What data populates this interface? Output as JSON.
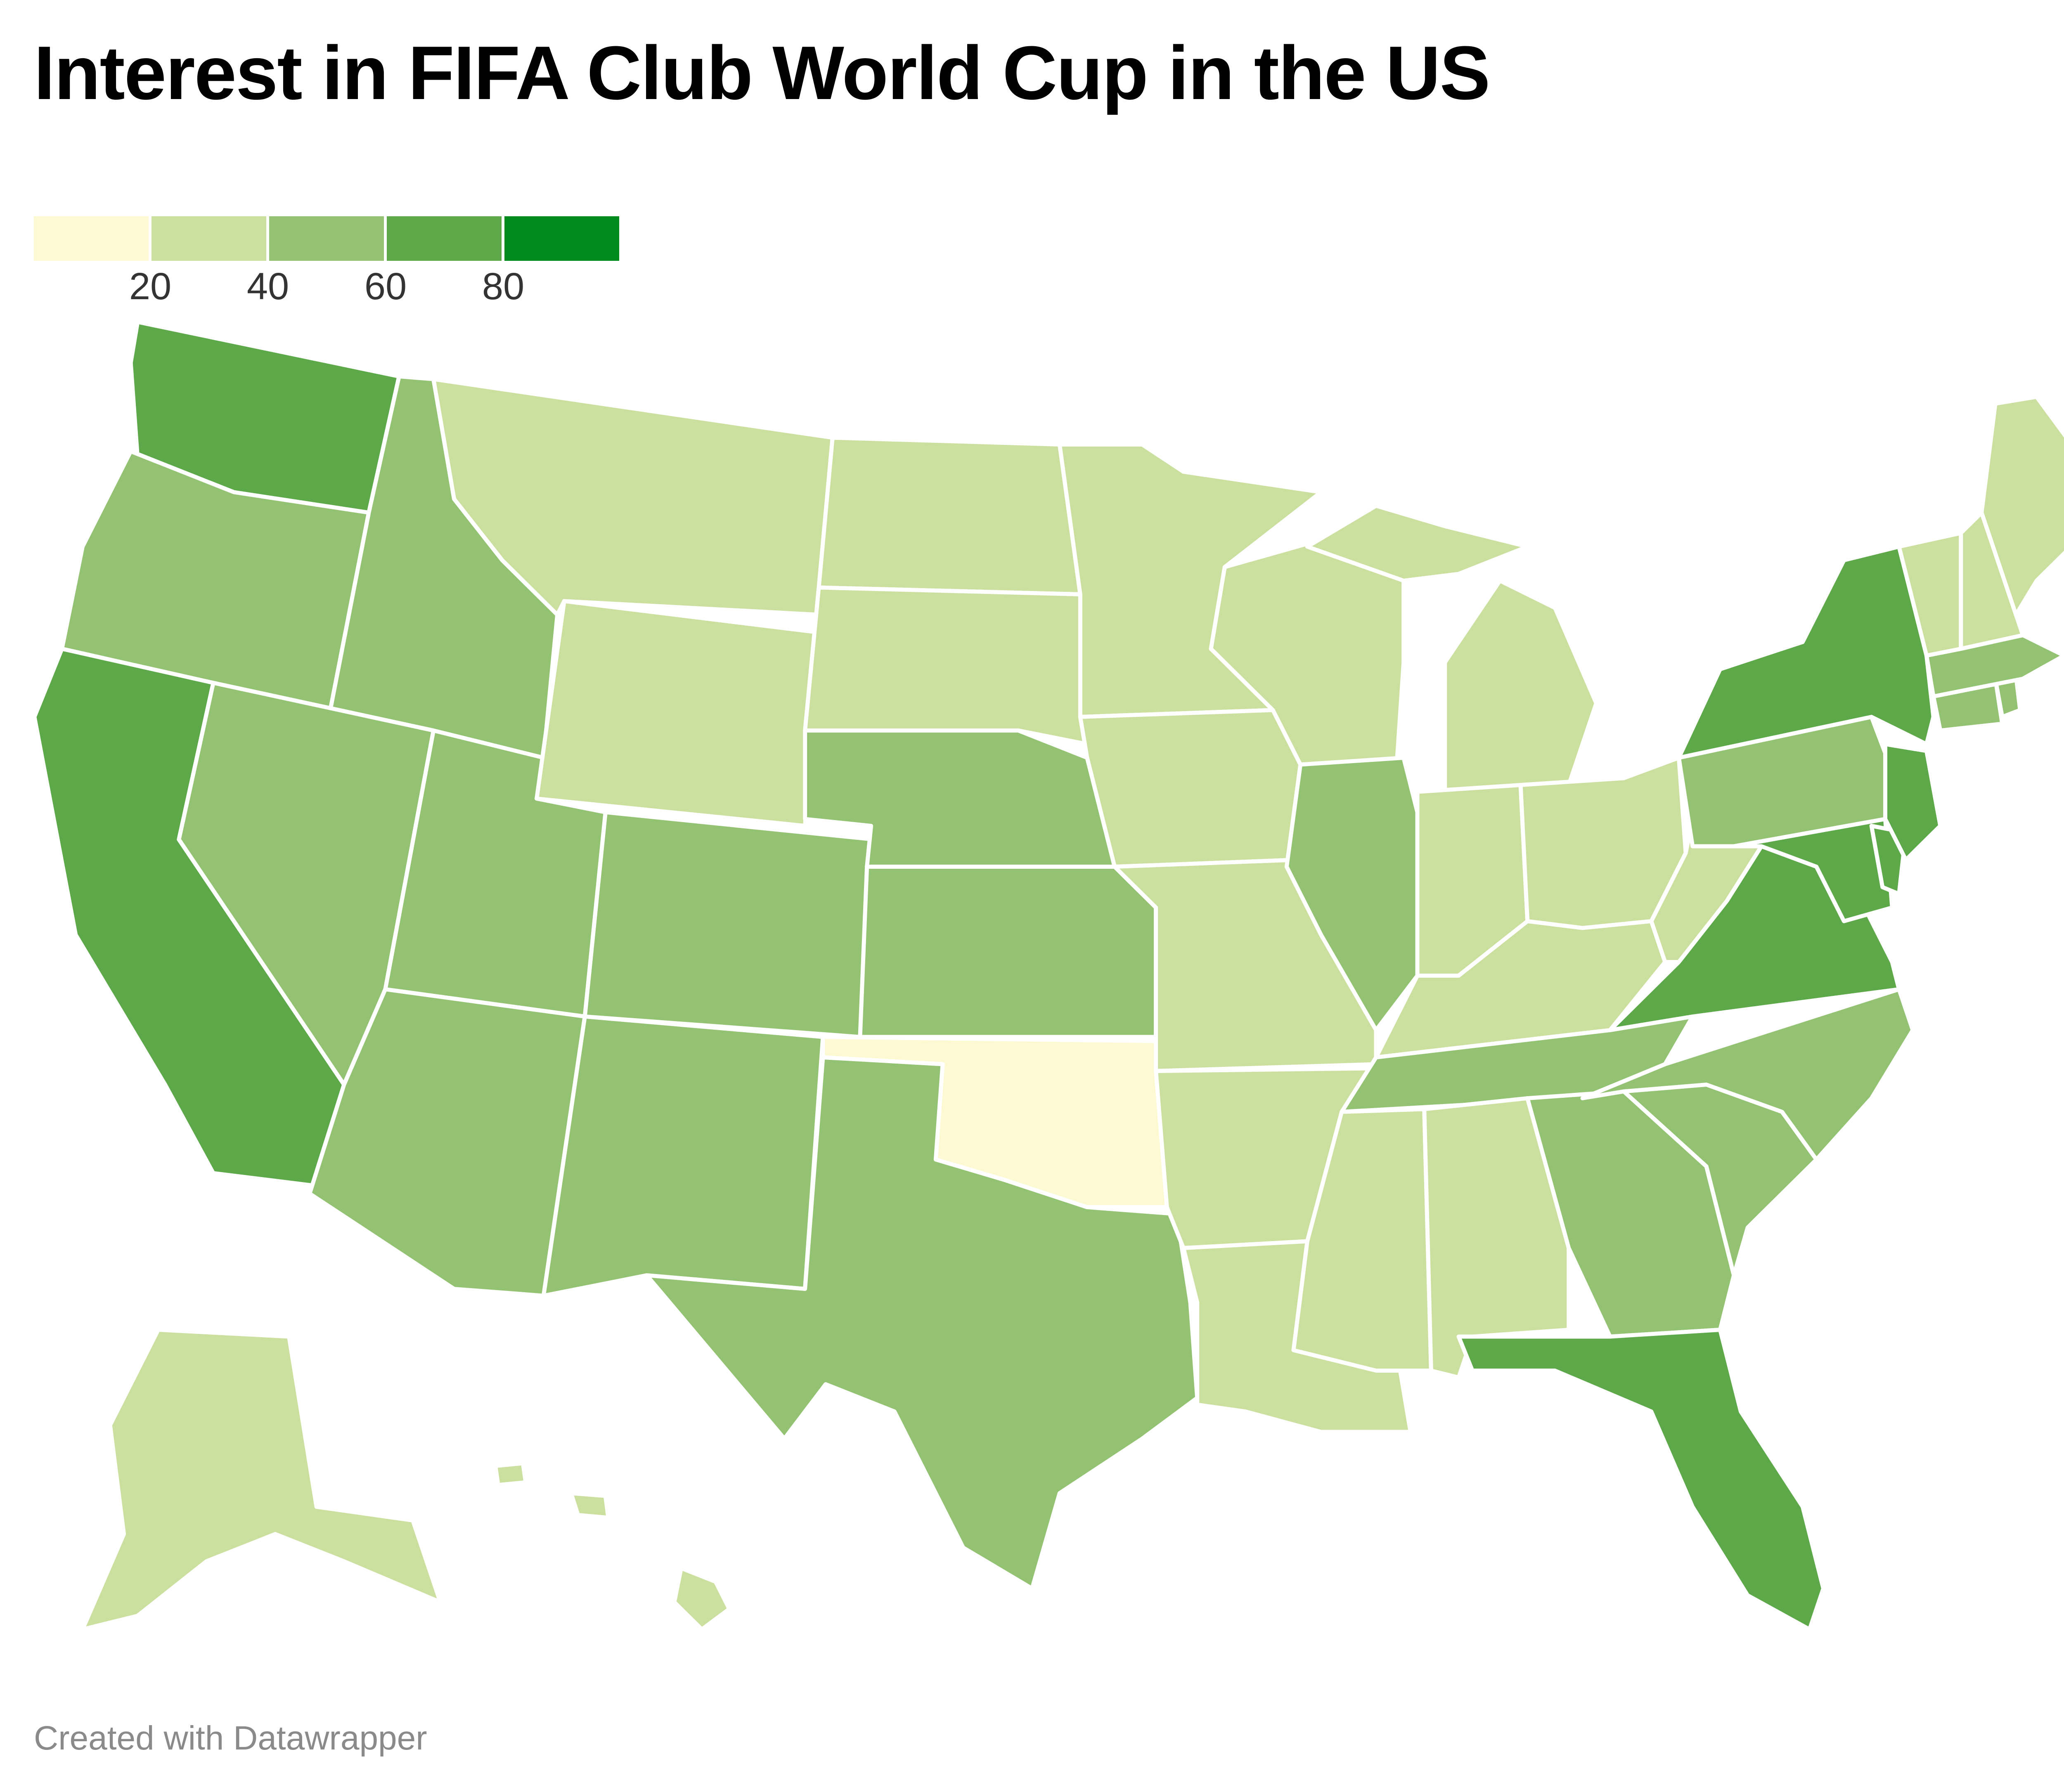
{
  "title": "Interest in FIFA Club World Cup in the US",
  "credit": "Created with Datawrapper",
  "legend": {
    "colors": [
      "#fdf9d2",
      "#cbdf9e",
      "#93c272",
      "#5da848",
      "#008a1e"
    ],
    "ticks": [
      "20",
      "40",
      "60",
      "80"
    ]
  },
  "map_data": {
    "type": "choropleth",
    "region": "United States",
    "bins": [
      [
        0,
        20
      ],
      [
        20,
        40
      ],
      [
        40,
        60
      ],
      [
        60,
        80
      ],
      [
        80,
        100
      ]
    ],
    "states": [
      {
        "name": "Washington",
        "bin": 3
      },
      {
        "name": "California",
        "bin": 3
      },
      {
        "name": "New York",
        "bin": 3
      },
      {
        "name": "New Jersey",
        "bin": 3
      },
      {
        "name": "Maryland",
        "bin": 3
      },
      {
        "name": "Virginia",
        "bin": 3
      },
      {
        "name": "Florida",
        "bin": 3
      },
      {
        "name": "Delaware",
        "bin": 3
      },
      {
        "name": "Oregon",
        "bin": 2
      },
      {
        "name": "Idaho",
        "bin": 2
      },
      {
        "name": "Nevada",
        "bin": 2
      },
      {
        "name": "Utah",
        "bin": 2
      },
      {
        "name": "Arizona",
        "bin": 2
      },
      {
        "name": "Colorado",
        "bin": 2
      },
      {
        "name": "New Mexico",
        "bin": 2
      },
      {
        "name": "Texas",
        "bin": 2
      },
      {
        "name": "Nebraska",
        "bin": 2
      },
      {
        "name": "Kansas",
        "bin": 2
      },
      {
        "name": "Illinois",
        "bin": 2
      },
      {
        "name": "Tennessee",
        "bin": 2
      },
      {
        "name": "North Carolina",
        "bin": 2
      },
      {
        "name": "South Carolina",
        "bin": 2
      },
      {
        "name": "Georgia",
        "bin": 2
      },
      {
        "name": "Pennsylvania",
        "bin": 2
      },
      {
        "name": "Massachusetts",
        "bin": 2
      },
      {
        "name": "Connecticut",
        "bin": 2
      },
      {
        "name": "Rhode Island",
        "bin": 2
      },
      {
        "name": "Montana",
        "bin": 1
      },
      {
        "name": "Wyoming",
        "bin": 1
      },
      {
        "name": "North Dakota",
        "bin": 1
      },
      {
        "name": "South Dakota",
        "bin": 1
      },
      {
        "name": "Minnesota",
        "bin": 1
      },
      {
        "name": "Iowa",
        "bin": 1
      },
      {
        "name": "Missouri",
        "bin": 1
      },
      {
        "name": "Arkansas",
        "bin": 1
      },
      {
        "name": "Louisiana",
        "bin": 1
      },
      {
        "name": "Mississippi",
        "bin": 1
      },
      {
        "name": "Alabama",
        "bin": 1
      },
      {
        "name": "Wisconsin",
        "bin": 1
      },
      {
        "name": "Michigan",
        "bin": 1
      },
      {
        "name": "Indiana",
        "bin": 1
      },
      {
        "name": "Ohio",
        "bin": 1
      },
      {
        "name": "Kentucky",
        "bin": 1
      },
      {
        "name": "West Virginia",
        "bin": 1
      },
      {
        "name": "Maine",
        "bin": 1
      },
      {
        "name": "Vermont",
        "bin": 1
      },
      {
        "name": "New Hampshire",
        "bin": 1
      },
      {
        "name": "Alaska",
        "bin": 1
      },
      {
        "name": "Hawaii",
        "bin": 1
      },
      {
        "name": "Oklahoma",
        "bin": 0
      }
    ]
  }
}
